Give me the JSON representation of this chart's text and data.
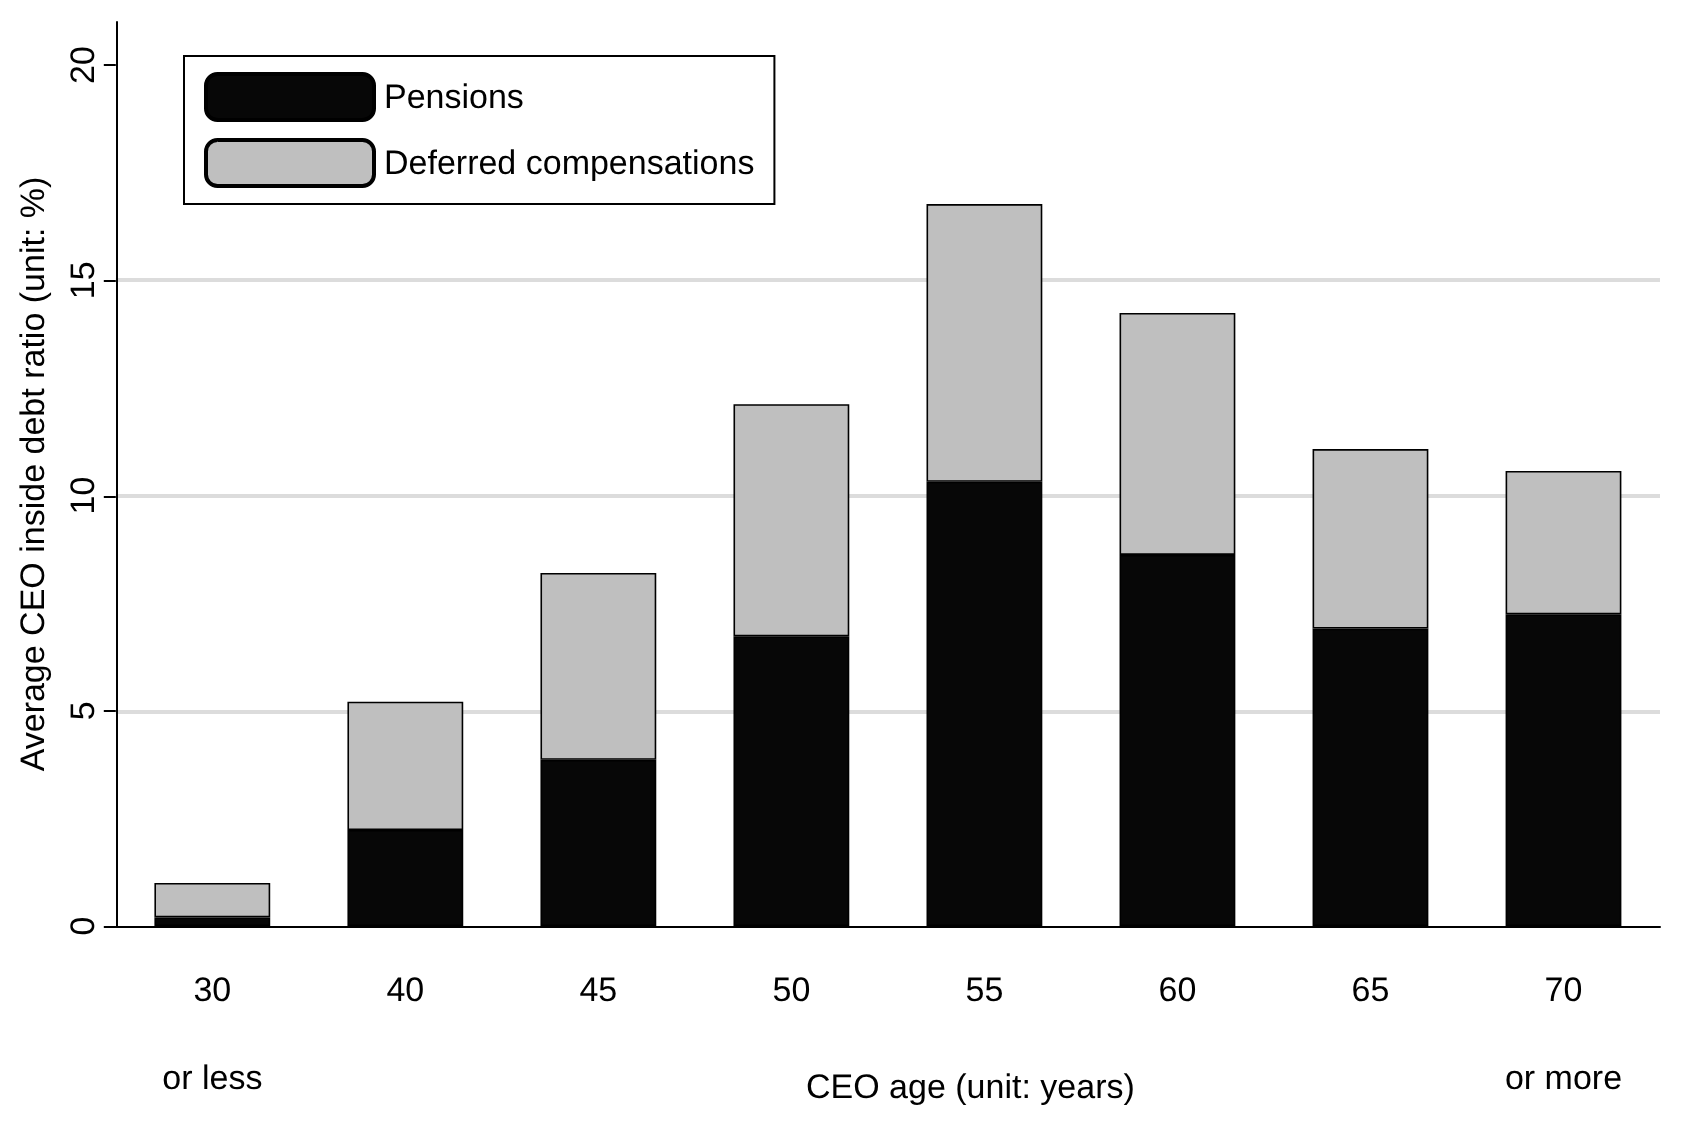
{
  "chart_data": {
    "type": "bar",
    "stacked": true,
    "xlabel": "CEO age (unit: years)",
    "ylabel": "Average CEO inside debt ratio (unit: %)",
    "categories": [
      "30\nor less",
      "40",
      "45",
      "50",
      "55",
      "60",
      "65",
      "70\nor more"
    ],
    "series": [
      {
        "name": "Pensions",
        "color": "#070707",
        "values": [
          0.2,
          2.23,
          3.86,
          6.73,
          10.32,
          8.62,
          6.91,
          7.24
        ]
      },
      {
        "name": "Deferred compensations",
        "color": "#bfbfbf",
        "values": [
          0.8,
          2.98,
          4.34,
          5.39,
          6.45,
          5.62,
          4.17,
          3.33
        ]
      }
    ],
    "ylim": [
      0,
      21
    ],
    "yticks": [
      0,
      5,
      10,
      15,
      20
    ],
    "grid": "y",
    "legend": "top left"
  }
}
